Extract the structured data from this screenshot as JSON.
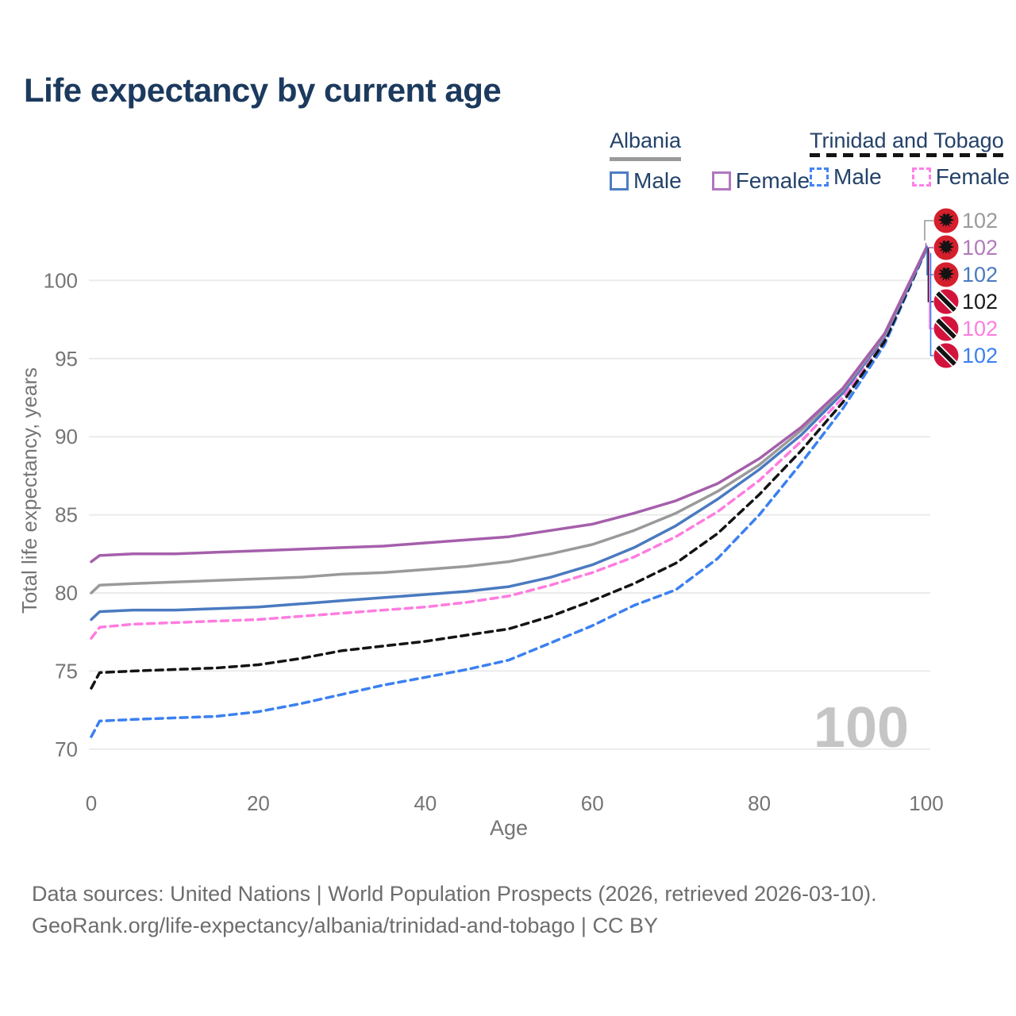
{
  "page": {
    "title": "Life expectancy by current age"
  },
  "legend": {
    "groups": [
      {
        "country": "Albania",
        "line_style": "solid",
        "underline_color": "#9a9a9a",
        "items": [
          {
            "label": "Male",
            "color": "#4d7dc3",
            "dashed": false
          },
          {
            "label": "Female",
            "color": "#b077be",
            "dashed": false
          }
        ]
      },
      {
        "country": "Trinidad and Tobago",
        "line_style": "dashed",
        "underline_color": "#141414",
        "items": [
          {
            "label": "Male",
            "color": "#4285f4",
            "dashed": true
          },
          {
            "label": "Female",
            "color": "#ff80e8",
            "dashed": true
          }
        ]
      }
    ]
  },
  "chart_data": {
    "type": "line",
    "title": "Life expectancy by current age",
    "xlabel": "Age",
    "ylabel": "Total life expectancy, years",
    "x_ticks": [
      0,
      20,
      40,
      60,
      80,
      100
    ],
    "y_ticks": [
      70,
      75,
      80,
      85,
      90,
      95,
      100
    ],
    "xlim": [
      0,
      100
    ],
    "ylim": [
      68.5,
      103
    ],
    "grid": true,
    "watermark": "100",
    "ages": [
      0,
      1,
      5,
      10,
      15,
      20,
      25,
      30,
      35,
      40,
      45,
      50,
      55,
      60,
      65,
      70,
      75,
      80,
      85,
      90,
      95,
      100
    ],
    "draw_order": [
      5,
      4,
      3,
      2,
      0,
      1
    ],
    "series": [
      {
        "name": "Albania Total",
        "country": "Albania",
        "sex": "Total",
        "color": "#9a9a9a",
        "label_color": "#9a9a9a",
        "dashed": false,
        "flag": "albania",
        "end_label": "102",
        "values": [
          80.0,
          80.5,
          80.6,
          80.7,
          80.8,
          80.9,
          81.0,
          81.2,
          81.3,
          81.5,
          81.7,
          82.0,
          82.5,
          83.1,
          84.0,
          85.1,
          86.5,
          88.2,
          90.4,
          93.0,
          96.5,
          102.1
        ]
      },
      {
        "name": "Albania Female",
        "country": "Albania",
        "sex": "Female",
        "color": "#a55fab",
        "label_color": "#b279bb",
        "dashed": false,
        "flag": "albania",
        "end_label": "102",
        "values": [
          82.0,
          82.4,
          82.5,
          82.5,
          82.6,
          82.7,
          82.8,
          82.9,
          83.0,
          83.2,
          83.4,
          83.6,
          84.0,
          84.4,
          85.1,
          85.9,
          87.0,
          88.6,
          90.6,
          93.1,
          96.6,
          102.1
        ]
      },
      {
        "name": "Albania Male",
        "country": "Albania",
        "sex": "Male",
        "color": "#4a7ac0",
        "label_color": "#4a7ac0",
        "dashed": false,
        "flag": "albania",
        "end_label": "102",
        "values": [
          78.3,
          78.8,
          78.9,
          78.9,
          79.0,
          79.1,
          79.3,
          79.5,
          79.7,
          79.9,
          80.1,
          80.4,
          81.0,
          81.8,
          82.9,
          84.3,
          86.0,
          87.9,
          90.1,
          92.8,
          96.4,
          102.0
        ]
      },
      {
        "name": "Trinidad and Tobago Total",
        "country": "Trinidad and Tobago",
        "sex": "Total",
        "color": "#141414",
        "label_color": "#1a1a1a",
        "dashed": true,
        "flag": "tt",
        "end_label": "102",
        "values": [
          73.9,
          74.9,
          75.0,
          75.1,
          75.2,
          75.4,
          75.8,
          76.3,
          76.6,
          76.9,
          77.3,
          77.7,
          78.5,
          79.5,
          80.6,
          81.9,
          83.8,
          86.3,
          89.1,
          92.2,
          96.1,
          102.0
        ]
      },
      {
        "name": "Trinidad and Tobago Female",
        "country": "Trinidad and Tobago",
        "sex": "Female",
        "color": "#ff7ce0",
        "label_color": "#ff7ce0",
        "dashed": true,
        "flag": "tt",
        "end_label": "102",
        "values": [
          77.1,
          77.8,
          78.0,
          78.1,
          78.2,
          78.3,
          78.5,
          78.7,
          78.9,
          79.1,
          79.4,
          79.8,
          80.5,
          81.3,
          82.3,
          83.6,
          85.2,
          87.2,
          89.7,
          92.5,
          96.2,
          102.0
        ]
      },
      {
        "name": "Trinidad and Tobago Male",
        "country": "Trinidad and Tobago",
        "sex": "Male",
        "color": "#3b80f0",
        "label_color": "#3b80f0",
        "dashed": true,
        "flag": "tt",
        "end_label": "102",
        "values": [
          70.8,
          71.8,
          71.9,
          72.0,
          72.1,
          72.4,
          72.9,
          73.5,
          74.1,
          74.6,
          75.1,
          75.7,
          76.8,
          77.9,
          79.2,
          80.2,
          82.2,
          85.0,
          88.3,
          91.8,
          95.9,
          102.0
        ]
      }
    ],
    "colors": {
      "grid": "#ebebeb",
      "axis_text": "#757575",
      "watermark": "#c5c5c5",
      "flag_red_albania": "#d51f2c",
      "flag_red_tt": "#d2143c"
    }
  },
  "footer": {
    "line1": "Data sources: United Nations | World Population Prospects (2026, retrieved 2026-03-10).",
    "line2": "GeoRank.org/life-expectancy/albania/trinidad-and-tobago | CC BY"
  }
}
